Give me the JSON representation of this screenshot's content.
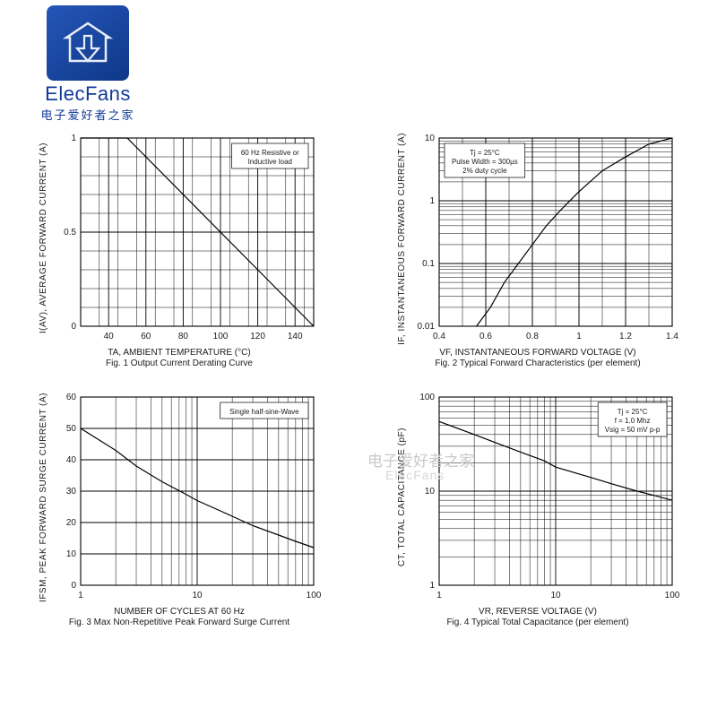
{
  "brand": {
    "title": "ElecFans",
    "subtitle": "电子爱好者之家"
  },
  "watermark": "电子爱好者之家",
  "watermark2": "ElecFans",
  "plot_color": "#000000",
  "grid_color": "#000000",
  "bg_color": "#ffffff",
  "line_width": 1.2,
  "grid_width": 0.5,
  "tick_fontsize": 10,
  "annot_fontsize": 8,
  "fig1": {
    "type": "line-linear",
    "ylabel": "I(AV), AVERAGE FORWARD CURRENT (A)",
    "xlabel": "TA, AMBIENT TEMPERATURE (°C)",
    "caption": "Fig. 1  Output Current Derating Curve",
    "annot": [
      "60 Hz Resistive or",
      "Inductive load"
    ],
    "xlim": [
      25,
      150
    ],
    "ylim": [
      0,
      1.0
    ],
    "xticks": [
      40,
      60,
      80,
      100,
      120,
      140
    ],
    "xminor_step": 10,
    "yticks": [
      0,
      0.5,
      1.0
    ],
    "yminor_step": 0.1,
    "data": [
      [
        25,
        1.0
      ],
      [
        50,
        1.0
      ],
      [
        150,
        0.0
      ]
    ]
  },
  "fig2": {
    "type": "line-semilogy",
    "ylabel": "IF, INSTANTANEOUS FORWARD CURRENT (A)",
    "xlabel": "VF, INSTANTANEOUS FORWARD VOLTAGE (V)",
    "caption": "Fig. 2  Typical Forward Characteristics (per element)",
    "annot": [
      "Tj = 25°C",
      "Pulse Width = 300µs",
      "2% duty cycle"
    ],
    "xlim": [
      0.4,
      1.4
    ],
    "ylim": [
      0.01,
      10
    ],
    "xticks": [
      0.4,
      0.6,
      0.8,
      1.0,
      1.2,
      1.4
    ],
    "xminor_step": 0.1,
    "yticks": [
      0.01,
      0.1,
      1.0,
      10
    ],
    "data": [
      [
        0.56,
        0.01
      ],
      [
        0.62,
        0.02
      ],
      [
        0.68,
        0.05
      ],
      [
        0.74,
        0.1
      ],
      [
        0.8,
        0.2
      ],
      [
        0.86,
        0.4
      ],
      [
        0.92,
        0.7
      ],
      [
        1.0,
        1.4
      ],
      [
        1.1,
        3.0
      ],
      [
        1.2,
        5.0
      ],
      [
        1.3,
        8.0
      ],
      [
        1.4,
        10.0
      ]
    ]
  },
  "fig3": {
    "type": "line-semilogx",
    "ylabel": "IFSM, PEAK FORWARD SURGE CURRENT (A)",
    "xlabel": "NUMBER OF CYCLES AT 60 Hz",
    "caption": "Fig. 3  Max Non-Repetitive Peak Forward Surge Current",
    "annot": [
      "Single half-sine-Wave"
    ],
    "xlim": [
      1,
      100
    ],
    "ylim": [
      0,
      60
    ],
    "xticks": [
      1,
      10,
      100
    ],
    "yticks": [
      0,
      10,
      20,
      30,
      40,
      50,
      60
    ],
    "data": [
      [
        1,
        50
      ],
      [
        2,
        43
      ],
      [
        3,
        38
      ],
      [
        5,
        33
      ],
      [
        8,
        29
      ],
      [
        10,
        27
      ],
      [
        20,
        22
      ],
      [
        30,
        19
      ],
      [
        50,
        16
      ],
      [
        70,
        14
      ],
      [
        100,
        12
      ]
    ]
  },
  "fig4": {
    "type": "line-loglog",
    "ylabel": "CT, TOTAL CAPACITANCE (pF)",
    "xlabel": "VR, REVERSE VOLTAGE (V)",
    "caption": "Fig. 4  Typical Total Capacitance (per element)",
    "annot": [
      "Tj = 25°C",
      "f = 1.0 Mhz",
      "Vsig = 50 mV p-p"
    ],
    "xlim": [
      1,
      100
    ],
    "ylim": [
      1,
      100
    ],
    "xticks": [
      1,
      10,
      100
    ],
    "yticks": [
      1,
      10,
      100
    ],
    "data": [
      [
        1,
        55
      ],
      [
        2,
        40
      ],
      [
        3,
        33
      ],
      [
        5,
        26
      ],
      [
        8,
        21
      ],
      [
        10,
        18
      ],
      [
        20,
        14
      ],
      [
        30,
        12
      ],
      [
        50,
        10
      ],
      [
        70,
        9
      ],
      [
        100,
        8
      ]
    ]
  }
}
